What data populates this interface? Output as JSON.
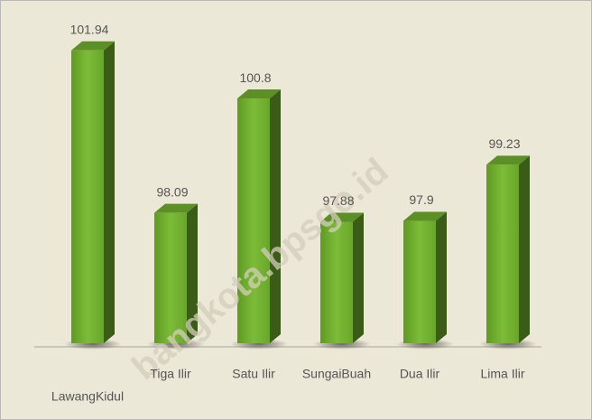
{
  "chart_data": {
    "type": "bar3d",
    "categories": [
      "LawangKidul",
      "Tiga Ilir",
      "Satu Ilir",
      "SungaiBuah",
      "Dua Ilir",
      "Lima Ilir"
    ],
    "values": [
      101.94,
      98.09,
      100.8,
      97.88,
      97.9,
      99.23
    ],
    "color": "#72b031",
    "ylim": [
      95,
      102
    ],
    "watermark": "bangkota.bpsgo.id"
  }
}
